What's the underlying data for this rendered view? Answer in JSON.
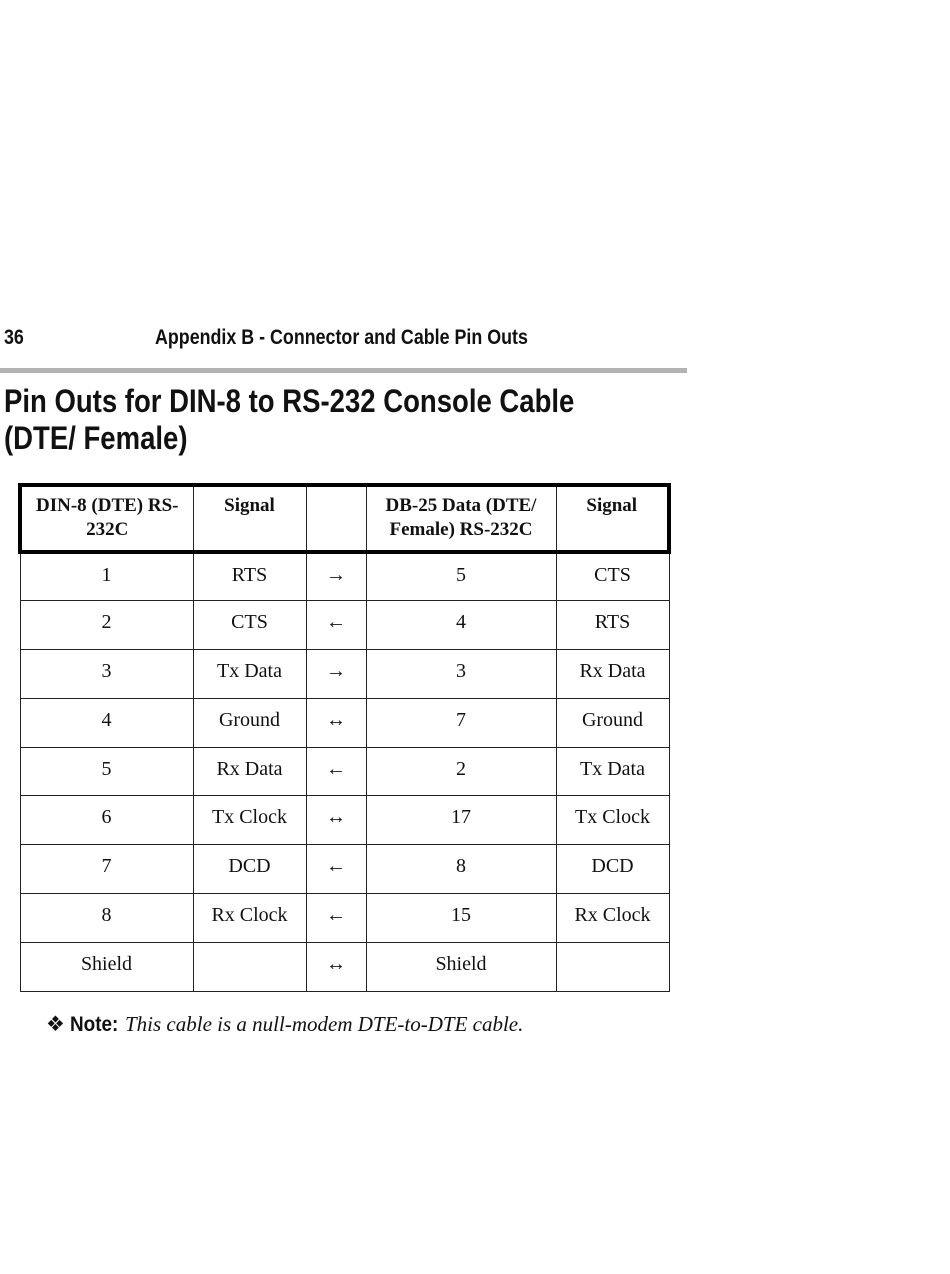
{
  "header": {
    "page_number": "36",
    "running_title": "Appendix B - Connector and Cable Pin Outs"
  },
  "title": "Pin Outs for DIN-8 to RS-232 Console Cable (DTE/ Female)",
  "table": {
    "columns": [
      "DIN-8 (DTE) RS-232C",
      "Signal",
      "",
      "DB-25 Data (DTE/ Female) RS-232C",
      "Signal"
    ],
    "rows": [
      [
        "1",
        "RTS",
        "→",
        "5",
        "CTS"
      ],
      [
        "2",
        "CTS",
        "←",
        "4",
        "RTS"
      ],
      [
        "3",
        "Tx Data",
        "→",
        "3",
        "Rx Data"
      ],
      [
        "4",
        "Ground",
        "↔",
        "7",
        "Ground"
      ],
      [
        "5",
        "Rx Data",
        "←",
        "2",
        "Tx Data"
      ],
      [
        "6",
        "Tx Clock",
        "↔",
        "17",
        "Tx Clock"
      ],
      [
        "7",
        "DCD",
        "←",
        "8",
        "DCD"
      ],
      [
        "8",
        "Rx Clock",
        "←",
        "15",
        "Rx Clock"
      ],
      [
        "Shield",
        "",
        "↔",
        "Shield",
        ""
      ]
    ]
  },
  "note": {
    "bullet": "❖",
    "label": "Note:",
    "text": "This cable is a null-modem DTE-to-DTE cable."
  }
}
